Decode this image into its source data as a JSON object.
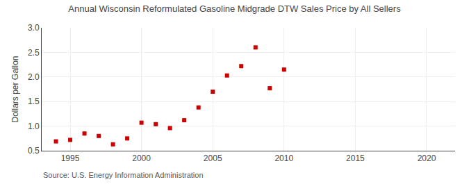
{
  "chart_data": {
    "type": "scatter",
    "title": "Annual Wisconsin Reformulated Gasoline Midgrade DTW Sales Price by All Sellers",
    "y_label": "Dollars per Gallon",
    "annotations": [
      "Source: U.S. Energy Information Administration"
    ],
    "x": [
      1994,
      1995,
      1996,
      1997,
      1998,
      1999,
      2000,
      2001,
      2002,
      2003,
      2004,
      2005,
      2006,
      2007,
      2008,
      2009,
      2010
    ],
    "values": [
      0.69,
      0.72,
      0.85,
      0.8,
      0.63,
      0.75,
      1.07,
      1.04,
      0.96,
      1.12,
      1.38,
      1.7,
      2.03,
      2.22,
      2.6,
      1.77,
      2.15
    ],
    "color": "#cc0000",
    "marker": "square",
    "xlim": [
      1993,
      2022
    ],
    "ylim": [
      0.5,
      3.0
    ],
    "xticks": [
      1995,
      2000,
      2005,
      2010,
      2015,
      2020
    ],
    "yticks": [
      0.5,
      {
        "value": 1.0,
        "label": "1.0"
      },
      1.5,
      {
        "value": 2.0,
        "label": "2.0"
      },
      2.5,
      {
        "value": 3.0,
        "label": "3.0"
      }
    ],
    "grid": true
  }
}
